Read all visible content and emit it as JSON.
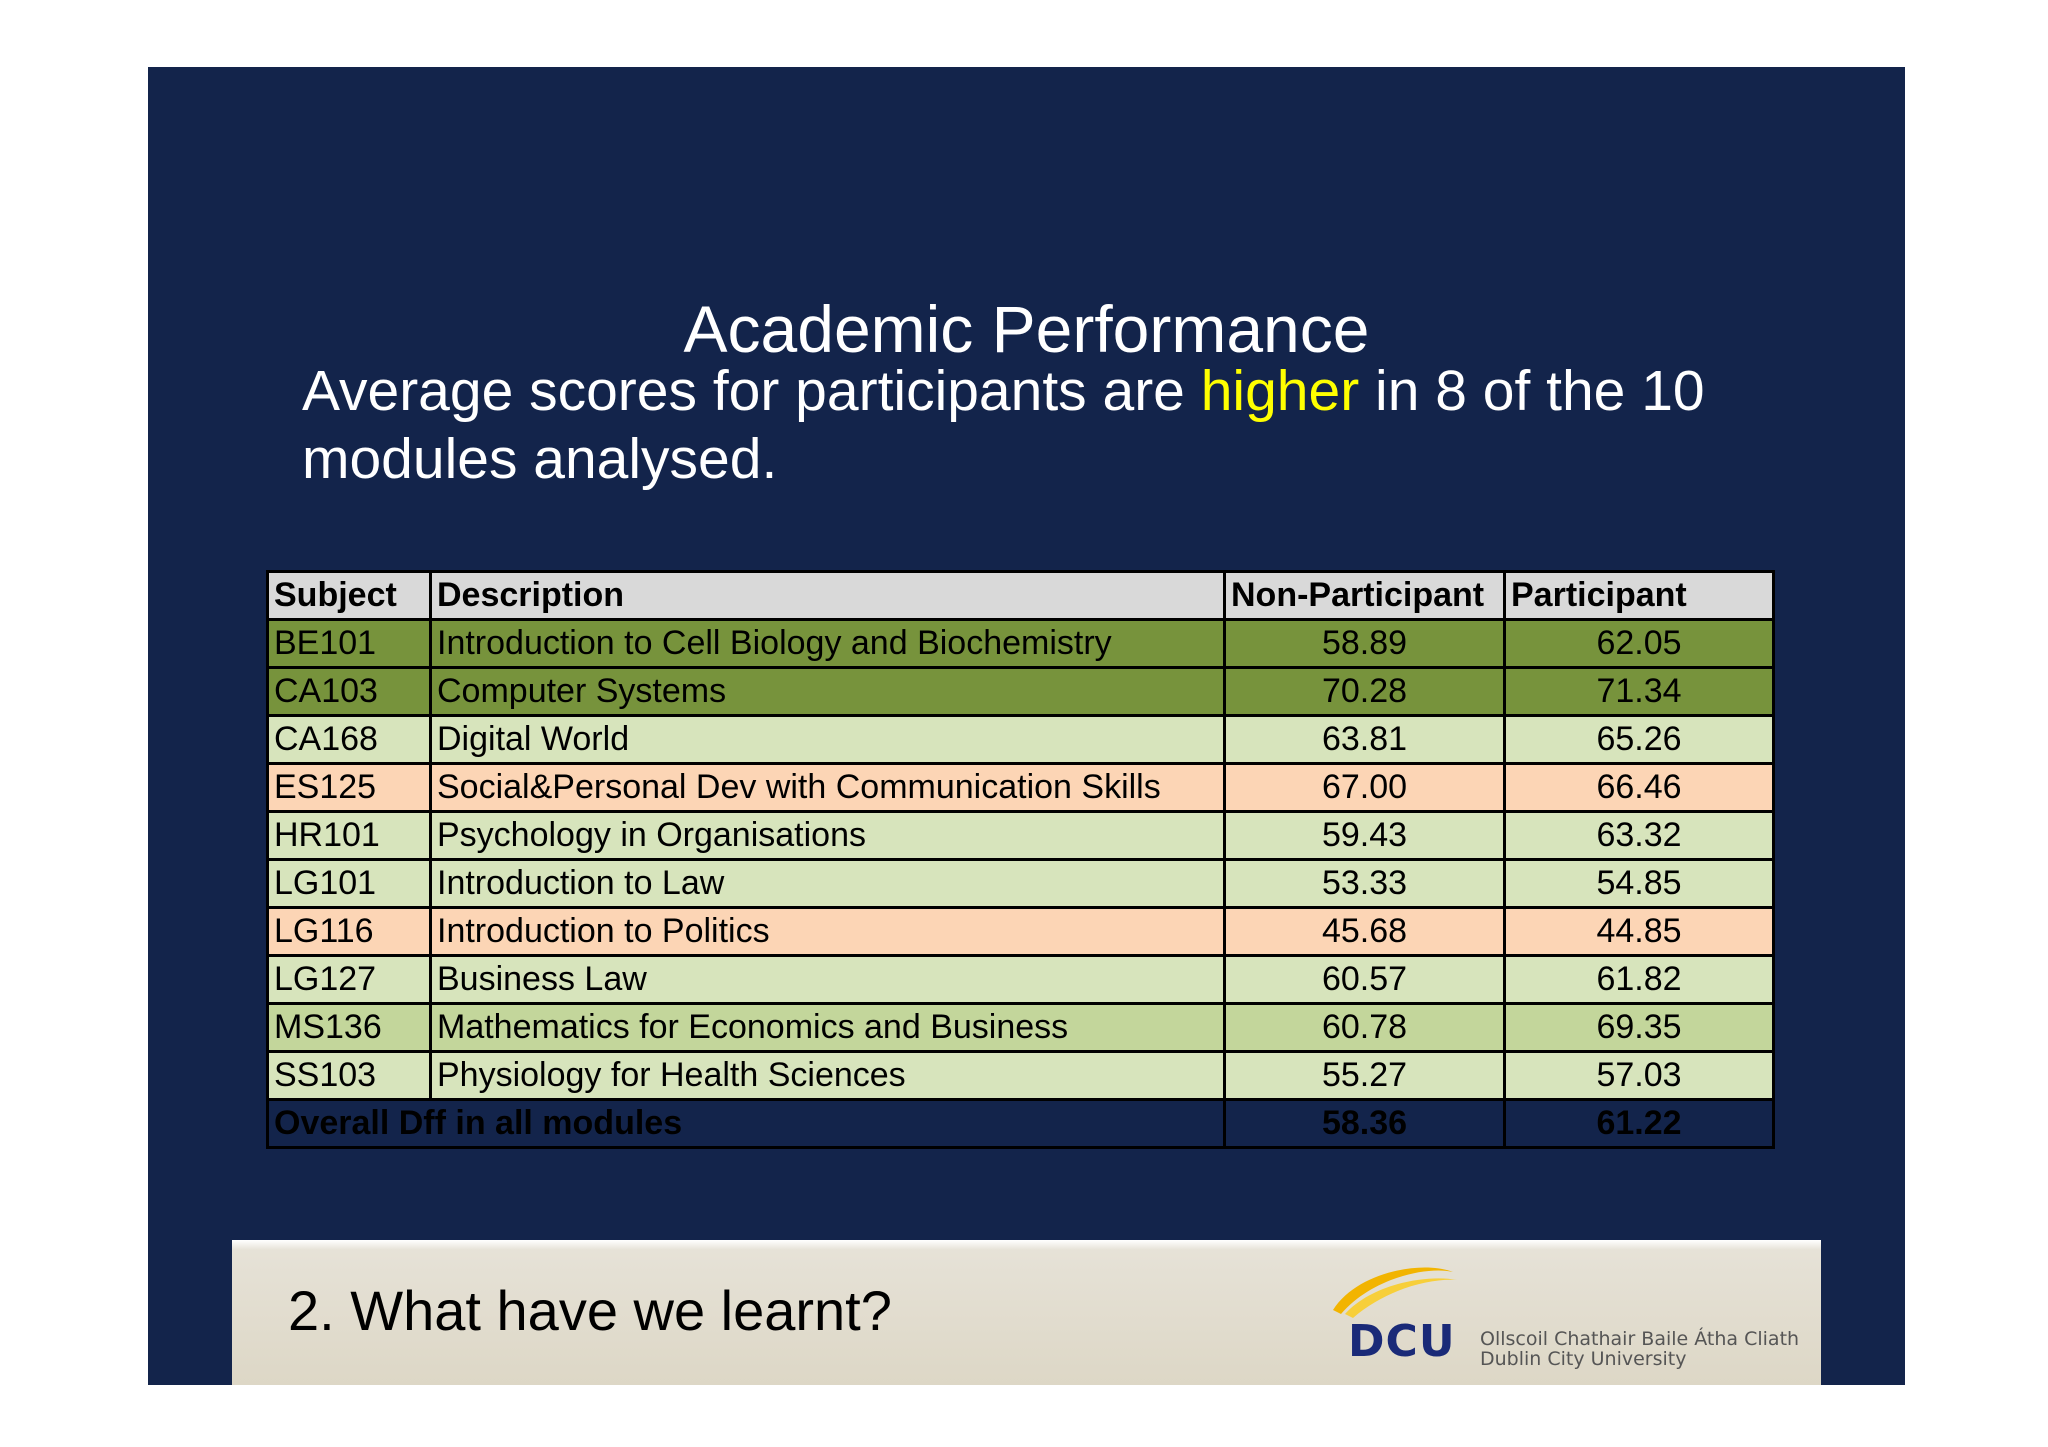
{
  "slide": {
    "title": "Academic Performance",
    "subtitle_before": "Average scores for participants are ",
    "subtitle_highlight": "higher",
    "subtitle_after": " in 8 of the 10 modules analysed.",
    "highlight_color": "#ffff00",
    "background_color": "#13244b"
  },
  "table": {
    "headers": [
      "Subject",
      "Description",
      "Non-Participant",
      "Participant"
    ],
    "rows": [
      {
        "subject": "BE101",
        "description": "Introduction to Cell Biology and Biochemistry",
        "non_participant": "58.89",
        "participant": "62.05",
        "tone": "dark"
      },
      {
        "subject": "CA103",
        "description": "Computer Systems",
        "non_participant": "70.28",
        "participant": "71.34",
        "tone": "dark"
      },
      {
        "subject": "CA168",
        "description": "Digital World",
        "non_participant": "63.81",
        "participant": "65.26",
        "tone": "light"
      },
      {
        "subject": "ES125",
        "description": "Social&Personal Dev with Communication Skills",
        "non_participant": "67.00",
        "participant": "66.46",
        "tone": "orange"
      },
      {
        "subject": "HR101",
        "description": "Psychology in Organisations",
        "non_participant": "59.43",
        "participant": "63.32",
        "tone": "light"
      },
      {
        "subject": "LG101",
        "description": "Introduction to Law",
        "non_participant": "53.33",
        "participant": "54.85",
        "tone": "light"
      },
      {
        "subject": "LG116",
        "description": "Introduction to Politics",
        "non_participant": "45.68",
        "participant": "44.85",
        "tone": "orange"
      },
      {
        "subject": "LG127",
        "description": "Business Law",
        "non_participant": "60.57",
        "participant": "61.82",
        "tone": "light"
      },
      {
        "subject": "MS136",
        "description": "Mathematics for Economics and Business",
        "non_participant": "60.78",
        "participant": "69.35",
        "tone": "mid"
      },
      {
        "subject": "SS103",
        "description": "Physiology for Health Sciences",
        "non_participant": "55.27",
        "participant": "57.03",
        "tone": "light"
      }
    ],
    "total": {
      "label": "Overall Dff in all modules",
      "non_participant": "58.36",
      "participant": "61.22"
    },
    "tone_colors": {
      "dark": "#77933c",
      "light": "#d7e4bc",
      "mid": "#c3d69b",
      "orange": "#fcd5b5",
      "header": "#d9d9d9"
    }
  },
  "footer": {
    "text": "2. What have we learnt?",
    "logo_mark": "DCU",
    "logo_line1": "Ollscoil Chathair Baile Átha Cliath",
    "logo_line2": "Dublin City University",
    "logo_swoosh_color": "#f2b400",
    "logo_text_color": "#1a2a78"
  }
}
